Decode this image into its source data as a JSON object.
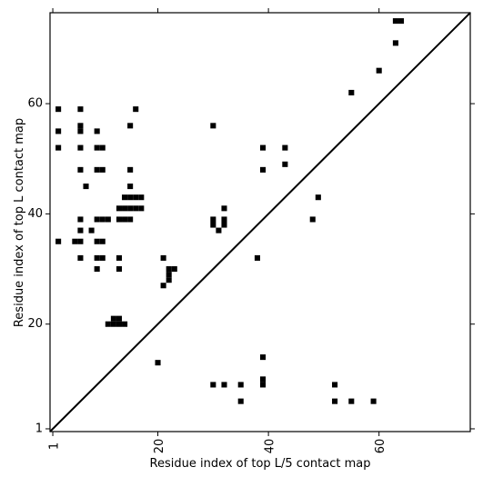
{
  "chart_data": {
    "type": "scatter",
    "marker": "square",
    "xlabel": "Residue index of top L/5 contact map",
    "ylabel": "Residue index of top L contact map",
    "xlim": [
      0.5,
      76.5
    ],
    "ylim": [
      0.5,
      76.5
    ],
    "x_ticks": [
      1,
      20,
      40,
      60
    ],
    "y_ticks": [
      1,
      20,
      40,
      60
    ],
    "x_tick_labels": [
      "1",
      "20",
      "40",
      "60"
    ],
    "y_tick_labels": [
      "1",
      "20",
      "40",
      "60"
    ],
    "diagonal": true,
    "grid": false,
    "colors": {
      "marker": "#000000",
      "axes": "#000000",
      "background": "#ffffff"
    },
    "points": [
      [
        2,
        59
      ],
      [
        6,
        59
      ],
      [
        16,
        59
      ],
      [
        2,
        55
      ],
      [
        6,
        56
      ],
      [
        6,
        55
      ],
      [
        9,
        55
      ],
      [
        15,
        56
      ],
      [
        30,
        56
      ],
      [
        2,
        52
      ],
      [
        6,
        52
      ],
      [
        9,
        52
      ],
      [
        10,
        52
      ],
      [
        39,
        52
      ],
      [
        43,
        52
      ],
      [
        6,
        48
      ],
      [
        9,
        48
      ],
      [
        10,
        48
      ],
      [
        15,
        48
      ],
      [
        39,
        48
      ],
      [
        43,
        49
      ],
      [
        7,
        45
      ],
      [
        15,
        45
      ],
      [
        49,
        43
      ],
      [
        14,
        43
      ],
      [
        15,
        43
      ],
      [
        16,
        43
      ],
      [
        17,
        43
      ],
      [
        13,
        41
      ],
      [
        14,
        41
      ],
      [
        15,
        41
      ],
      [
        16,
        41
      ],
      [
        17,
        41
      ],
      [
        32,
        41
      ],
      [
        6,
        39
      ],
      [
        9,
        39
      ],
      [
        10,
        39
      ],
      [
        11,
        39
      ],
      [
        13,
        39
      ],
      [
        14,
        39
      ],
      [
        15,
        39
      ],
      [
        30,
        39
      ],
      [
        32,
        39
      ],
      [
        48,
        39
      ],
      [
        30,
        38
      ],
      [
        32,
        38
      ],
      [
        6,
        37
      ],
      [
        8,
        37
      ],
      [
        31,
        37
      ],
      [
        2,
        35
      ],
      [
        5,
        35
      ],
      [
        6,
        35
      ],
      [
        9,
        35
      ],
      [
        10,
        35
      ],
      [
        6,
        32
      ],
      [
        9,
        32
      ],
      [
        10,
        32
      ],
      [
        13,
        32
      ],
      [
        21,
        32
      ],
      [
        38,
        32
      ],
      [
        9,
        30
      ],
      [
        13,
        30
      ],
      [
        22,
        30
      ],
      [
        23,
        30
      ],
      [
        22,
        29
      ],
      [
        22,
        28
      ],
      [
        21,
        27
      ],
      [
        12,
        21
      ],
      [
        13,
        21
      ],
      [
        11,
        20
      ],
      [
        12,
        20
      ],
      [
        13,
        20
      ],
      [
        14,
        20
      ],
      [
        39,
        14
      ],
      [
        20,
        13
      ],
      [
        39,
        10
      ],
      [
        30,
        9
      ],
      [
        32,
        9
      ],
      [
        35,
        9
      ],
      [
        39,
        9
      ],
      [
        52,
        9
      ],
      [
        35,
        6
      ],
      [
        52,
        6
      ],
      [
        55,
        6
      ],
      [
        59,
        6
      ],
      [
        63,
        75
      ],
      [
        64,
        75
      ],
      [
        63,
        71
      ],
      [
        60,
        66
      ],
      [
        55,
        62
      ]
    ]
  }
}
